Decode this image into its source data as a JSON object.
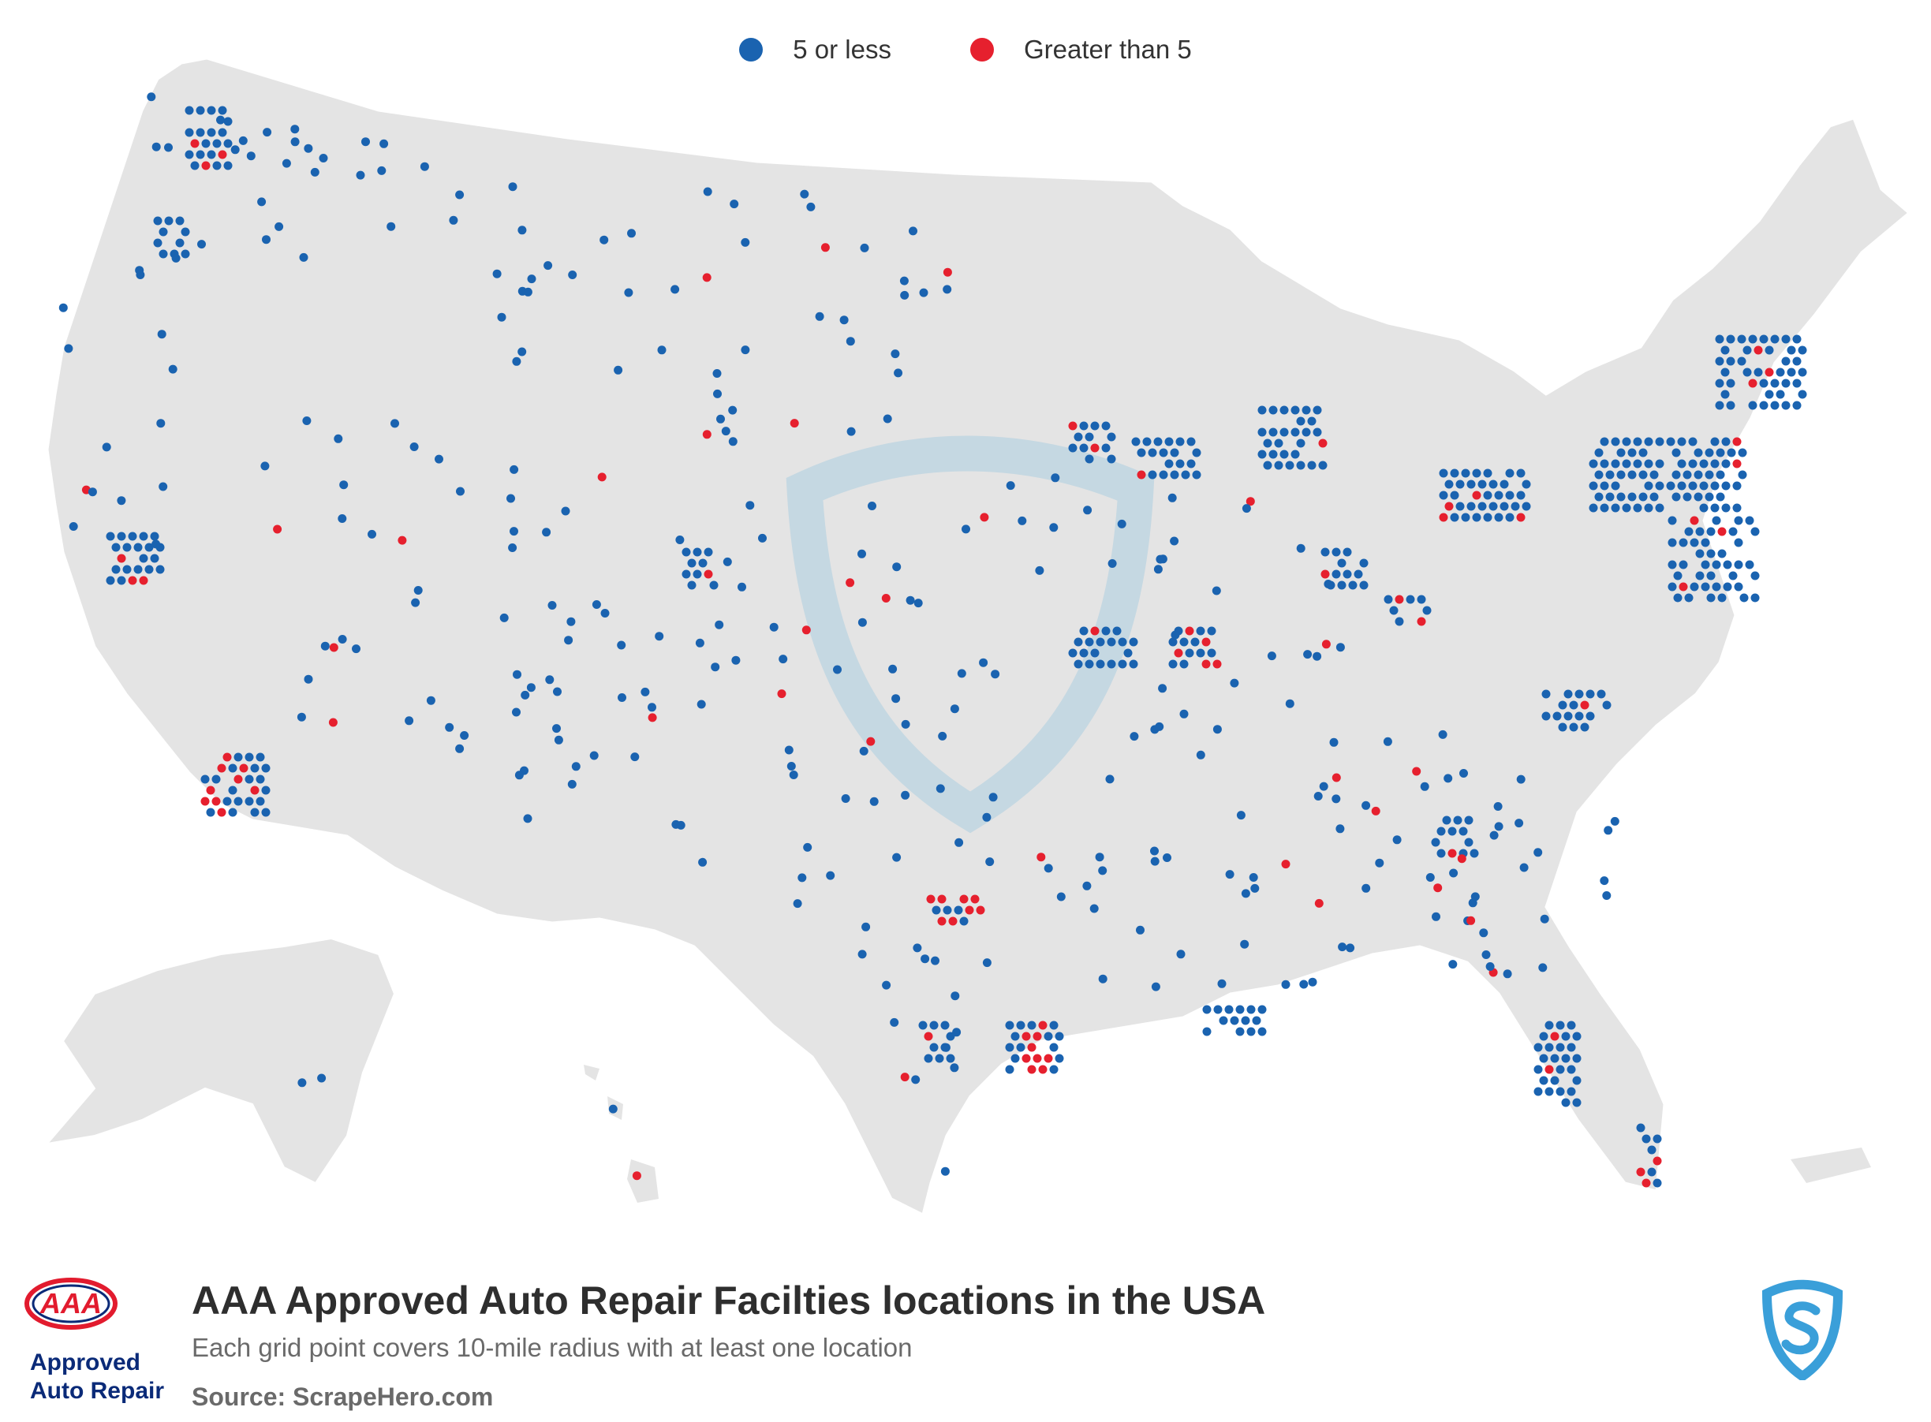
{
  "legend": {
    "small": {
      "label": "5 or less",
      "color": "#1a63b0"
    },
    "large": {
      "label": "Greater than 5",
      "color": "#e6202e"
    }
  },
  "footer": {
    "title": "AAA Approved Auto Repair Facilties locations in the USA",
    "subtitle": "Each grid point covers 10-mile radius with at least one location",
    "source": "Source: ScrapeHero.com",
    "brand_logo_text": "AAA",
    "brand_line1": "Approved",
    "brand_line2": "Auto Repair",
    "watermark_icon": "scrapehero-shield-icon"
  },
  "colors": {
    "land": "#e4e4e4",
    "border": "#ffffff",
    "dot_small": "#1a63b0",
    "dot_large": "#e6202e",
    "brand_red": "#e21b2e",
    "brand_navy": "#0a2a78",
    "watermark": "#3a9fd9"
  }
}
